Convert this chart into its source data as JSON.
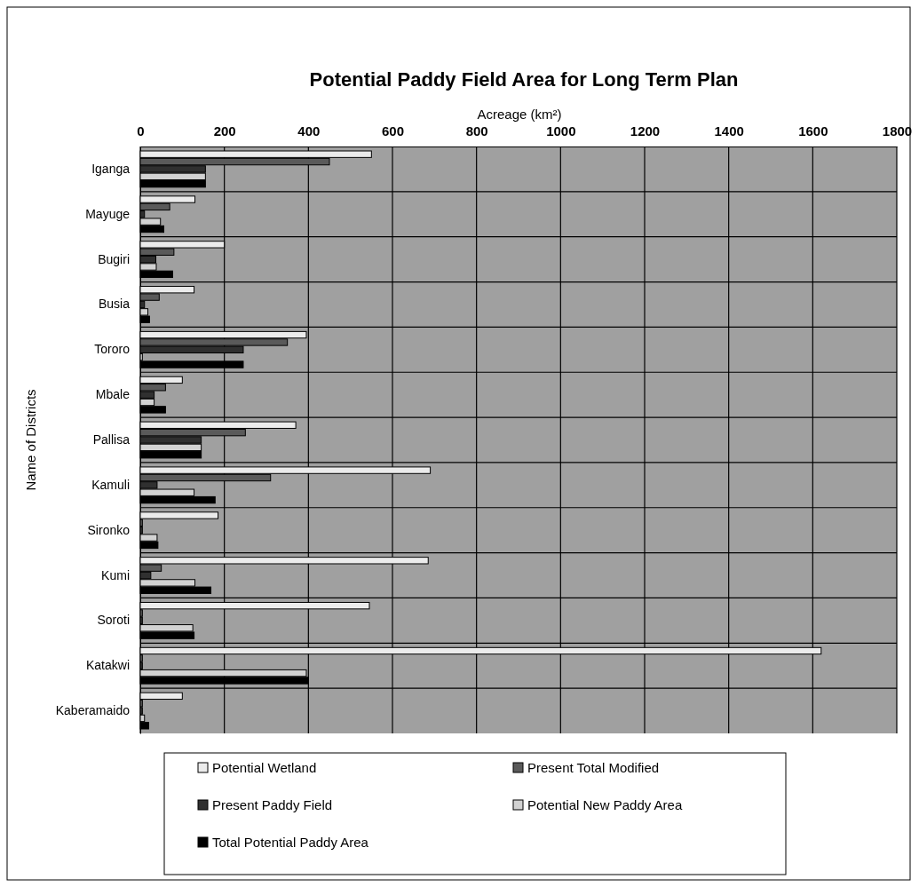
{
  "chart_data": {
    "type": "bar",
    "orientation": "horizontal",
    "title": "Potential Paddy Field Area for Long Term Plan",
    "xlabel": "Acreage (km²)",
    "ylabel": "Name of Districts",
    "categories": [
      "Iganga",
      "Mayuge",
      "Bugiri",
      "Busia",
      "Tororo",
      "Mbale",
      "Pallisa",
      "Kamuli",
      "Sironko",
      "Kumi",
      "Soroti",
      "Katakwi",
      "Kaberamaido"
    ],
    "series": [
      {
        "name": "Potential Wetland",
        "color": "#ebebeb",
        "values": [
          550,
          130,
          200,
          128,
          395,
          100,
          370,
          690,
          185,
          685,
          545,
          1620,
          100
        ]
      },
      {
        "name": "Present Total Modified",
        "color": "#5a5a5a",
        "values": [
          450,
          70,
          80,
          45,
          350,
          60,
          250,
          310,
          5,
          50,
          5,
          5,
          5
        ]
      },
      {
        "name": "Present Paddy Field",
        "color": "#303030",
        "values": [
          155,
          10,
          37,
          10,
          245,
          33,
          145,
          40,
          5,
          25,
          5,
          5,
          5
        ]
      },
      {
        "name": "Potential New Paddy Area",
        "color": "#d2d2d2",
        "values": [
          155,
          48,
          38,
          18,
          5,
          33,
          145,
          128,
          40,
          130,
          125,
          395,
          10
        ]
      },
      {
        "name": "Total Potential Paddy Area",
        "color": "#000000",
        "values": [
          155,
          56,
          77,
          22,
          245,
          60,
          145,
          178,
          42,
          168,
          128,
          400,
          20
        ]
      }
    ],
    "xlim": [
      0,
      1800
    ],
    "xticks": [
      0,
      200,
      400,
      600,
      800,
      1000,
      1200,
      1400,
      1600,
      1800
    ],
    "grid": true,
    "legend": "bottom"
  }
}
